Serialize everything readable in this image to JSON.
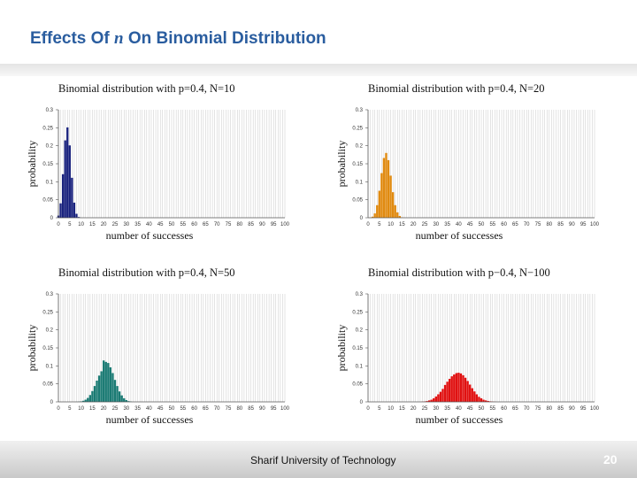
{
  "slide": {
    "title_prefix": "Effects Of ",
    "title_var": "n",
    "title_suffix": " On Binomial Distribution",
    "footer": "Sharif University of Technology",
    "page_number": "20"
  },
  "chart_data": [
    {
      "type": "bar",
      "title": "Binomial distribution with p=0.4, N=10",
      "xlabel": "number of successes",
      "ylabel": "probability",
      "xlim": [
        0,
        100
      ],
      "ylim": [
        0,
        0.3
      ],
      "xticks": [
        0,
        5,
        10,
        15,
        20,
        25,
        30,
        35,
        40,
        45,
        50,
        55,
        60,
        65,
        70,
        75,
        80,
        85,
        90,
        95,
        100
      ],
      "yticks": [
        0,
        0.05,
        0.1,
        0.15,
        0.2,
        0.25,
        0.3
      ],
      "ytick_labels": [
        "0",
        "0.05",
        "0.1",
        "0.15",
        "0.2",
        "0.25",
        "0.3"
      ],
      "grid": true,
      "color": "#1a237e",
      "x": [
        0,
        1,
        2,
        3,
        4,
        5,
        6,
        7,
        8,
        9,
        10
      ],
      "values": [
        0.006,
        0.04,
        0.121,
        0.215,
        0.251,
        0.201,
        0.111,
        0.042,
        0.011,
        0.002,
        0.0001
      ]
    },
    {
      "type": "bar",
      "title": "Binomial distribution with p=0.4, N=20",
      "xlabel": "number of successes",
      "ylabel": "probability",
      "xlim": [
        0,
        100
      ],
      "ylim": [
        0,
        0.3
      ],
      "xticks": [
        0,
        5,
        10,
        15,
        20,
        25,
        30,
        35,
        40,
        45,
        50,
        55,
        60,
        65,
        70,
        75,
        80,
        85,
        90,
        95,
        100
      ],
      "yticks": [
        0,
        0.05,
        0.1,
        0.15,
        0.2,
        0.25,
        0.3
      ],
      "ytick_labels": [
        "0",
        "0.05",
        "0.1",
        "0.15",
        "0.2",
        "0.25",
        "0.3"
      ],
      "grid": true,
      "color": "#e08a10",
      "x": [
        0,
        1,
        2,
        3,
        4,
        5,
        6,
        7,
        8,
        9,
        10,
        11,
        12,
        13,
        14,
        15,
        16,
        17,
        18,
        19,
        20
      ],
      "values": [
        4e-05,
        0.0005,
        0.003,
        0.012,
        0.035,
        0.075,
        0.124,
        0.166,
        0.18,
        0.16,
        0.117,
        0.071,
        0.035,
        0.015,
        0.005,
        0.001,
        0.0003,
        0,
        0,
        0,
        0
      ]
    },
    {
      "type": "bar",
      "title": "Binomial distribution with p=0.4, N=50",
      "xlabel": "number of successes",
      "ylabel": "probability",
      "xlim": [
        0,
        100
      ],
      "ylim": [
        0,
        0.3
      ],
      "xticks": [
        0,
        5,
        10,
        15,
        20,
        25,
        30,
        35,
        40,
        45,
        50,
        55,
        60,
        65,
        70,
        75,
        80,
        85,
        90,
        95,
        100
      ],
      "yticks": [
        0,
        0.05,
        0.1,
        0.15,
        0.2,
        0.25,
        0.3
      ],
      "ytick_labels": [
        "0",
        "0.05",
        "0.1",
        "0.15",
        "0.2",
        "0.25",
        "0.3"
      ],
      "grid": true,
      "color": "#1a7a73",
      "x": [
        8,
        9,
        10,
        11,
        12,
        13,
        14,
        15,
        16,
        17,
        18,
        19,
        20,
        21,
        22,
        23,
        24,
        25,
        26,
        27,
        28,
        29,
        30,
        31,
        32
      ],
      "values": [
        0.0002,
        0.0006,
        0.0014,
        0.003,
        0.006,
        0.011,
        0.019,
        0.03,
        0.044,
        0.059,
        0.073,
        0.085,
        0.115,
        0.111,
        0.108,
        0.096,
        0.08,
        0.061,
        0.044,
        0.029,
        0.018,
        0.01,
        0.005,
        0.002,
        0.001
      ]
    },
    {
      "type": "bar",
      "title": "Binomial distribution with p−0.4, N−100",
      "xlabel": "number of successes",
      "ylabel": "probability",
      "xlim": [
        0,
        100
      ],
      "ylim": [
        0,
        0.3
      ],
      "xticks": [
        0,
        5,
        10,
        15,
        20,
        25,
        30,
        35,
        40,
        45,
        50,
        55,
        60,
        65,
        70,
        75,
        80,
        85,
        90,
        95,
        100
      ],
      "yticks": [
        0,
        0.05,
        0.1,
        0.15,
        0.2,
        0.25,
        0.3
      ],
      "ytick_labels": [
        "0",
        "0.05",
        "0.1",
        "0.15",
        "0.2",
        "0.25",
        "0.3"
      ],
      "grid": true,
      "color": "#e01010",
      "x": [
        24,
        25,
        26,
        27,
        28,
        29,
        30,
        31,
        32,
        33,
        34,
        35,
        36,
        37,
        38,
        39,
        40,
        41,
        42,
        43,
        44,
        45,
        46,
        47,
        48,
        49,
        50,
        51,
        52,
        53,
        54,
        55,
        56
      ],
      "values": [
        0.0006,
        0.0012,
        0.0022,
        0.004,
        0.006,
        0.01,
        0.015,
        0.021,
        0.028,
        0.036,
        0.047,
        0.056,
        0.064,
        0.071,
        0.076,
        0.08,
        0.081,
        0.079,
        0.074,
        0.067,
        0.058,
        0.048,
        0.038,
        0.029,
        0.021,
        0.014,
        0.01,
        0.006,
        0.004,
        0.0025,
        0.0014,
        0.0008,
        0.0004
      ]
    }
  ]
}
